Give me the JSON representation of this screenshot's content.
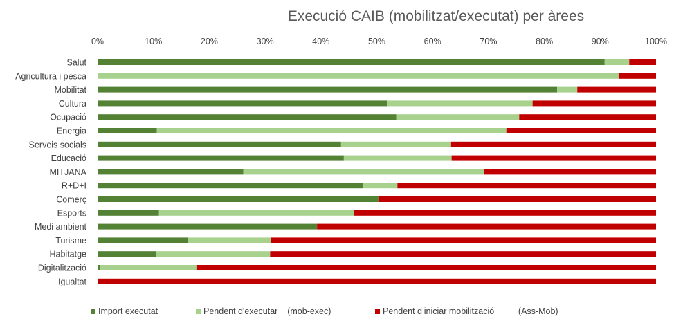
{
  "chart_data": {
    "type": "bar",
    "orientation": "horizontal",
    "stacked": true,
    "percent_stacked": true,
    "title": "Execució CAIB (mobilitzat/executat) per àrees",
    "xlabel": "",
    "ylabel": "",
    "xlim": [
      0,
      100
    ],
    "x_ticks": [
      "0%",
      "10%",
      "20%",
      "30%",
      "40%",
      "50%",
      "60%",
      "70%",
      "80%",
      "90%",
      "100%"
    ],
    "grid": false,
    "legend_position": "bottom",
    "categories": [
      "Salut",
      "Agricultura i pesca",
      "Mobilitat",
      "Cultura",
      "Ocupació",
      "Energia",
      "Serveis socials",
      "Educació",
      "MITJANA",
      "R+D+I",
      "Comerç",
      "Esports",
      "Medi ambient",
      "Turisme",
      "Habitatge",
      "Digitalització",
      "Igualtat"
    ],
    "series": [
      {
        "name": "Import executat",
        "color": "#548235",
        "values": [
          90.8,
          0,
          82.3,
          51.8,
          53.5,
          10.6,
          43.6,
          44.1,
          26.1,
          47.6,
          50.3,
          11.0,
          39.3,
          16.2,
          10.5,
          0.5,
          0
        ]
      },
      {
        "name": "Pendent d'executar    (mob-exec)",
        "color": "#a9d18e",
        "values": [
          4.4,
          93.3,
          3.6,
          26.1,
          22.0,
          62.6,
          19.7,
          19.3,
          43.1,
          6.1,
          0,
          34.9,
          0,
          14.9,
          20.4,
          17.2,
          0
        ]
      },
      {
        "name": "Pendent d’iniciar mobilització          (Ass-Mob)",
        "color": "#c00000",
        "values": [
          4.8,
          6.7,
          14.1,
          22.1,
          24.5,
          26.8,
          36.7,
          36.6,
          30.8,
          46.3,
          49.7,
          54.1,
          60.7,
          68.9,
          69.1,
          82.3,
          100
        ]
      }
    ]
  }
}
